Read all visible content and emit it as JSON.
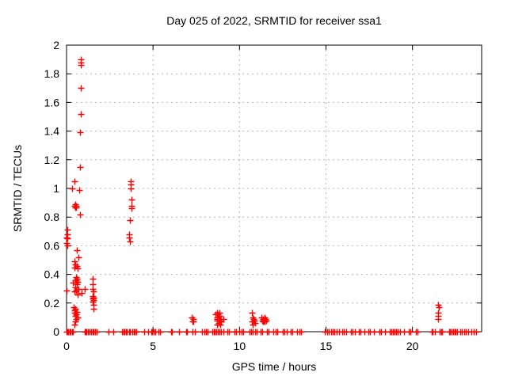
{
  "title": "Day 025 of 2022, SRMTID for receiver ssa1",
  "chart_data": {
    "type": "scatter",
    "title": "Day 025 of 2022, SRMTID for receiver ssa1",
    "xlabel": "GPS time / hours",
    "ylabel": "SRMTID / TECUs",
    "xlim": [
      0,
      24
    ],
    "ylim": [
      0,
      2
    ],
    "xticks": [
      0,
      5,
      10,
      15,
      20
    ],
    "xtick_labels": [
      "0",
      "5",
      "10",
      "15",
      "20"
    ],
    "yticks": [
      0,
      0.2,
      0.4,
      0.6,
      0.8,
      1,
      1.2,
      1.4,
      1.6,
      1.8,
      2
    ],
    "ytick_labels": [
      "0",
      "0.2",
      "0.4",
      "0.6",
      "0.8",
      "1",
      "1.2",
      "1.4",
      "1.6",
      "1.8",
      "2"
    ],
    "grid": true,
    "legend": "none",
    "marker": "plus",
    "marker_color": "#ff0000",
    "border_color": "#000000",
    "grid_color": "#b8b8b8",
    "series": [
      {
        "name": "SRMTID",
        "points": [
          [
            0.82,
            1.9
          ],
          [
            0.82,
            1.88
          ],
          [
            0.83,
            1.86
          ],
          [
            0.82,
            1.7
          ],
          [
            0.82,
            1.52
          ],
          [
            0.76,
            1.39
          ],
          [
            0.76,
            1.15
          ],
          [
            0.46,
            1.05
          ],
          [
            0.32,
            1.0
          ],
          [
            0.73,
            0.99
          ],
          [
            0.5,
            0.89
          ],
          [
            0.47,
            0.88
          ],
          [
            0.53,
            0.88
          ],
          [
            0.5,
            0.87
          ],
          [
            0.55,
            0.87
          ],
          [
            0.78,
            0.82
          ],
          [
            0.03,
            0.71
          ],
          [
            0.05,
            0.68
          ],
          [
            0.0,
            0.66
          ],
          [
            0.05,
            0.65
          ],
          [
            0.0,
            0.62
          ],
          [
            0.03,
            0.6
          ],
          [
            0.0,
            0.29
          ],
          [
            0.59,
            0.57
          ],
          [
            0.68,
            0.52
          ],
          [
            0.45,
            0.49
          ],
          [
            0.52,
            0.47
          ],
          [
            0.58,
            0.46
          ],
          [
            0.48,
            0.45
          ],
          [
            0.62,
            0.44
          ],
          [
            0.55,
            0.38
          ],
          [
            0.6,
            0.37
          ],
          [
            0.57,
            0.36
          ],
          [
            0.52,
            0.36
          ],
          [
            0.62,
            0.35
          ],
          [
            0.35,
            0.34
          ],
          [
            0.58,
            0.33
          ],
          [
            0.5,
            0.31
          ],
          [
            0.7,
            0.3
          ],
          [
            1.05,
            0.3
          ],
          [
            0.55,
            0.29
          ],
          [
            0.45,
            0.28
          ],
          [
            0.85,
            0.27
          ],
          [
            0.65,
            0.26
          ],
          [
            0.4,
            0.17
          ],
          [
            0.52,
            0.16
          ],
          [
            0.48,
            0.15
          ],
          [
            0.58,
            0.14
          ],
          [
            0.44,
            0.13
          ],
          [
            0.54,
            0.12
          ],
          [
            0.5,
            0.11
          ],
          [
            0.63,
            0.1
          ],
          [
            0.55,
            0.09
          ],
          [
            0.5,
            0.07
          ],
          [
            0.47,
            0.05
          ],
          [
            1.5,
            0.37
          ],
          [
            1.5,
            0.33
          ],
          [
            1.53,
            0.3
          ],
          [
            1.55,
            0.28
          ],
          [
            1.52,
            0.25
          ],
          [
            1.56,
            0.24
          ],
          [
            1.49,
            0.23
          ],
          [
            1.58,
            0.22
          ],
          [
            1.52,
            0.21
          ],
          [
            1.55,
            0.19
          ],
          [
            1.54,
            0.16
          ],
          [
            3.7,
            1.05
          ],
          [
            3.7,
            1.03
          ],
          [
            3.7,
            1.0
          ],
          [
            3.74,
            0.92
          ],
          [
            3.74,
            0.88
          ],
          [
            3.76,
            0.86
          ],
          [
            3.65,
            0.78
          ],
          [
            3.62,
            0.68
          ],
          [
            3.63,
            0.66
          ],
          [
            3.66,
            0.63
          ],
          [
            7.25,
            0.1
          ],
          [
            7.32,
            0.09
          ],
          [
            7.35,
            0.07
          ],
          [
            7.28,
            0.07
          ],
          [
            8.62,
            0.12
          ],
          [
            8.72,
            0.13
          ],
          [
            8.75,
            0.12
          ],
          [
            8.85,
            0.13
          ],
          [
            8.82,
            0.11
          ],
          [
            8.68,
            0.1
          ],
          [
            8.78,
            0.1
          ],
          [
            8.88,
            0.09
          ],
          [
            8.72,
            0.09
          ],
          [
            8.82,
            0.08
          ],
          [
            8.68,
            0.08
          ],
          [
            8.92,
            0.07
          ],
          [
            8.78,
            0.06
          ],
          [
            8.72,
            0.05
          ],
          [
            8.88,
            0.05
          ],
          [
            9.05,
            0.09
          ],
          [
            10.72,
            0.13
          ],
          [
            10.75,
            0.1
          ],
          [
            10.8,
            0.09
          ],
          [
            10.85,
            0.08
          ],
          [
            10.72,
            0.07
          ],
          [
            10.88,
            0.06
          ],
          [
            10.78,
            0.05
          ],
          [
            11.25,
            0.1
          ],
          [
            11.35,
            0.09
          ],
          [
            11.45,
            0.1
          ],
          [
            11.3,
            0.08
          ],
          [
            11.4,
            0.08
          ],
          [
            11.5,
            0.09
          ],
          [
            11.35,
            0.07
          ],
          [
            11.47,
            0.07
          ],
          [
            11.55,
            0.08
          ],
          [
            21.5,
            0.19
          ],
          [
            21.53,
            0.17
          ],
          [
            21.5,
            0.13
          ],
          [
            21.5,
            0.11
          ],
          [
            21.48,
            0.09
          ],
          [
            0.0,
            0
          ],
          [
            0.05,
            0
          ],
          [
            0.1,
            0
          ],
          [
            0.18,
            0
          ],
          [
            0.25,
            0
          ],
          [
            0.3,
            0
          ],
          [
            0.38,
            0
          ],
          [
            1.05,
            0
          ],
          [
            1.1,
            0
          ],
          [
            1.15,
            0
          ],
          [
            1.25,
            0
          ],
          [
            1.32,
            0
          ],
          [
            1.4,
            0
          ],
          [
            1.5,
            0
          ],
          [
            1.58,
            0
          ],
          [
            1.65,
            0
          ],
          [
            1.72,
            0
          ],
          [
            2.45,
            0
          ],
          [
            2.7,
            0
          ],
          [
            3.2,
            0
          ],
          [
            3.28,
            0
          ],
          [
            3.35,
            0
          ],
          [
            3.42,
            0
          ],
          [
            3.5,
            0
          ],
          [
            3.6,
            0
          ],
          [
            3.68,
            0
          ],
          [
            3.8,
            0
          ],
          [
            3.88,
            0
          ],
          [
            3.95,
            0
          ],
          [
            4.02,
            0
          ],
          [
            4.5,
            0
          ],
          [
            4.7,
            0
          ],
          [
            4.88,
            0
          ],
          [
            4.95,
            0
          ],
          [
            5.05,
            0
          ],
          [
            5.12,
            0
          ],
          [
            5.3,
            0
          ],
          [
            5.4,
            0
          ],
          [
            6.05,
            0
          ],
          [
            6.1,
            0
          ],
          [
            6.5,
            0
          ],
          [
            6.9,
            0
          ],
          [
            6.98,
            0
          ],
          [
            7.3,
            0
          ],
          [
            7.42,
            0
          ],
          [
            7.85,
            0
          ],
          [
            7.95,
            0
          ],
          [
            8.05,
            0
          ],
          [
            8.15,
            0
          ],
          [
            8.42,
            0
          ],
          [
            8.5,
            0
          ],
          [
            8.58,
            0
          ],
          [
            8.65,
            0
          ],
          [
            8.75,
            0
          ],
          [
            8.85,
            0
          ],
          [
            8.95,
            0
          ],
          [
            9.05,
            0
          ],
          [
            9.3,
            0
          ],
          [
            9.4,
            0
          ],
          [
            9.7,
            0
          ],
          [
            9.78,
            0
          ],
          [
            10.0,
            0
          ],
          [
            10.1,
            0
          ],
          [
            10.22,
            0
          ],
          [
            10.6,
            0
          ],
          [
            10.68,
            0
          ],
          [
            10.78,
            0
          ],
          [
            10.9,
            0
          ],
          [
            11.0,
            0
          ],
          [
            11.22,
            0
          ],
          [
            11.3,
            0
          ],
          [
            11.6,
            0
          ],
          [
            11.7,
            0
          ],
          [
            11.95,
            0
          ],
          [
            12.1,
            0
          ],
          [
            12.2,
            0
          ],
          [
            12.5,
            0
          ],
          [
            12.6,
            0
          ],
          [
            12.72,
            0
          ],
          [
            12.95,
            0
          ],
          [
            13.05,
            0
          ],
          [
            13.35,
            0
          ],
          [
            13.45,
            0
          ],
          [
            13.55,
            0
          ],
          [
            14.95,
            0
          ],
          [
            15.05,
            0
          ],
          [
            15.15,
            0
          ],
          [
            15.3,
            0
          ],
          [
            15.4,
            0
          ],
          [
            15.5,
            0
          ],
          [
            15.62,
            0
          ],
          [
            15.75,
            0
          ],
          [
            15.95,
            0
          ],
          [
            16.05,
            0
          ],
          [
            16.15,
            0
          ],
          [
            16.45,
            0
          ],
          [
            16.55,
            0
          ],
          [
            16.65,
            0
          ],
          [
            16.9,
            0
          ],
          [
            17.0,
            0
          ],
          [
            17.2,
            0
          ],
          [
            17.45,
            0
          ],
          [
            17.55,
            0
          ],
          [
            17.78,
            0
          ],
          [
            18.1,
            0
          ],
          [
            18.2,
            0
          ],
          [
            18.4,
            0
          ],
          [
            18.7,
            0
          ],
          [
            18.78,
            0
          ],
          [
            18.88,
            0
          ],
          [
            18.95,
            0
          ],
          [
            19.05,
            0
          ],
          [
            19.15,
            0
          ],
          [
            19.28,
            0
          ],
          [
            19.5,
            0
          ],
          [
            19.8,
            0
          ],
          [
            19.88,
            0
          ],
          [
            20.2,
            0
          ],
          [
            20.3,
            0
          ],
          [
            21.1,
            0
          ],
          [
            21.18,
            0
          ],
          [
            21.3,
            0
          ],
          [
            21.55,
            0
          ],
          [
            21.65,
            0
          ],
          [
            21.72,
            0
          ],
          [
            22.1,
            0
          ],
          [
            22.18,
            0
          ],
          [
            22.28,
            0
          ],
          [
            22.35,
            0
          ],
          [
            22.42,
            0
          ],
          [
            22.5,
            0
          ],
          [
            22.6,
            0
          ],
          [
            22.75,
            0
          ],
          [
            22.85,
            0
          ],
          [
            23.0,
            0
          ],
          [
            23.1,
            0
          ],
          [
            23.2,
            0
          ],
          [
            23.4,
            0
          ],
          [
            23.55,
            0
          ],
          [
            23.7,
            0
          ]
        ]
      }
    ]
  }
}
